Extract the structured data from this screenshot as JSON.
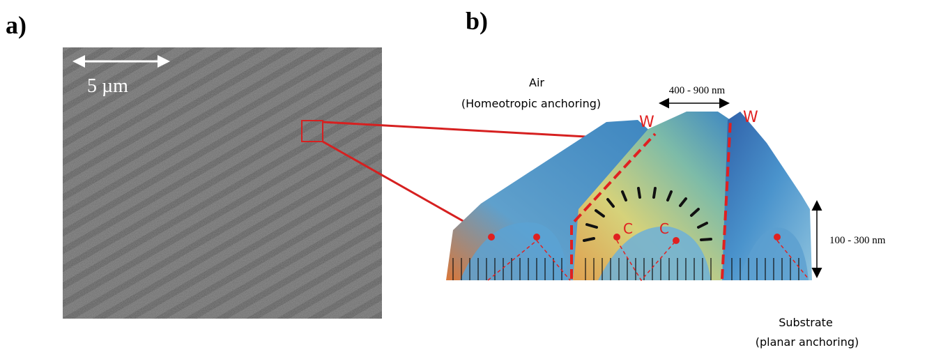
{
  "panel_a": {
    "label": "a)",
    "scale_bar": "5 µm"
  },
  "panel_b": {
    "label": "b)",
    "top_label": "Air",
    "top_anchoring": "(Homeotropic anchoring)",
    "period": "400 - 900 nm",
    "height": "100 -  300 nm",
    "wall_labels": [
      "W",
      "W"
    ],
    "core_labels": [
      "C",
      "C"
    ],
    "bottom_label": "Substrate",
    "bottom_anchoring": "(planar anchoring)"
  }
}
